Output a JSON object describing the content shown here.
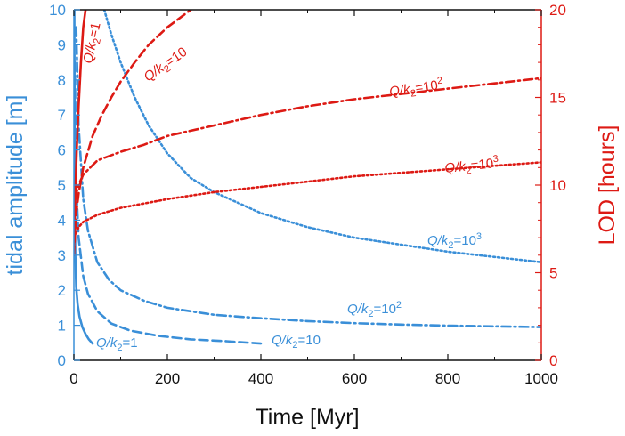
{
  "chart_data": {
    "type": "line",
    "title": "",
    "xlabel": "Time [Myr]",
    "ylabel_left": "tidal amplitude [m]",
    "ylabel_right": "LOD [hours]",
    "xlim": [
      0,
      1000
    ],
    "ylim_left": [
      0,
      10
    ],
    "ylim_right": [
      0,
      20
    ],
    "x_ticks": [
      "0",
      "200",
      "400",
      "600",
      "800",
      "1000"
    ],
    "y_left_ticks": [
      "0",
      "1",
      "2",
      "3",
      "4",
      "5",
      "6",
      "7",
      "8",
      "9",
      "10"
    ],
    "y_right_ticks": [
      "0",
      "5",
      "10",
      "15",
      "20"
    ],
    "colors": {
      "tide": "#3a8fd8",
      "lod": "#dd1a14"
    },
    "series": [
      {
        "name": "Q/k2=1 amplitude",
        "axis": "left",
        "color": "#3a8fd8",
        "dash": "solid",
        "x": [
          1,
          2,
          3,
          5,
          8,
          12,
          18,
          25,
          32,
          40
        ],
        "y": [
          10.0,
          4.1,
          3.0,
          2.1,
          1.6,
          1.25,
          0.95,
          0.75,
          0.6,
          0.48
        ]
      },
      {
        "name": "Q/k2=10 amplitude",
        "axis": "left",
        "color": "#3a8fd8",
        "dash": "dashed",
        "x": [
          2,
          5,
          10,
          20,
          30,
          50,
          80,
          120,
          180,
          250,
          320,
          400
        ],
        "y": [
          8.5,
          5.0,
          3.5,
          2.4,
          1.9,
          1.4,
          1.05,
          0.85,
          0.7,
          0.6,
          0.55,
          0.48
        ]
      },
      {
        "name": "Q/k2=10^2 amplitude",
        "axis": "left",
        "color": "#3a8fd8",
        "dash": "dashdot",
        "x": [
          5,
          10,
          20,
          30,
          50,
          75,
          100,
          150,
          200,
          300,
          400,
          500,
          600,
          700,
          800,
          900,
          1000
        ],
        "y": [
          9.5,
          6.7,
          4.6,
          3.7,
          2.8,
          2.3,
          2.0,
          1.7,
          1.5,
          1.3,
          1.2,
          1.12,
          1.06,
          1.02,
          0.99,
          0.97,
          0.95
        ]
      },
      {
        "name": "Q/k2=10^3 amplitude",
        "axis": "left",
        "color": "#3a8fd8",
        "dash": "dotted",
        "x": [
          65,
          80,
          100,
          130,
          160,
          200,
          250,
          300,
          350,
          400,
          500,
          600,
          700,
          800,
          900,
          1000
        ],
        "y": [
          10.0,
          9.3,
          8.5,
          7.5,
          6.7,
          5.9,
          5.2,
          4.8,
          4.5,
          4.2,
          3.8,
          3.5,
          3.3,
          3.1,
          2.95,
          2.8
        ]
      },
      {
        "name": "Q/k2=1 LOD",
        "axis": "right",
        "color": "#dd1a14",
        "dash": "solid",
        "x": [
          0,
          3,
          6,
          10,
          15,
          20,
          25
        ],
        "y": [
          6.0,
          9.5,
          12.0,
          14.5,
          17.0,
          19.0,
          20.0
        ]
      },
      {
        "name": "Q/k2=10 LOD",
        "axis": "right",
        "color": "#dd1a14",
        "dash": "dashed",
        "x": [
          0,
          5,
          10,
          20,
          40,
          60,
          80,
          100,
          130,
          160,
          200,
          250
        ],
        "y": [
          6.0,
          8.4,
          9.5,
          11.0,
          12.8,
          14.0,
          15.0,
          15.9,
          17.0,
          18.0,
          19.0,
          20.0
        ]
      },
      {
        "name": "Q/k2=10^2 LOD",
        "axis": "right",
        "color": "#dd1a14",
        "dash": "dashdot",
        "x": [
          0,
          5,
          10,
          20,
          50,
          100,
          150,
          200,
          300,
          400,
          500,
          600,
          700,
          800,
          900,
          1000
        ],
        "y": [
          8.2,
          9.5,
          10.0,
          10.6,
          11.4,
          11.9,
          12.3,
          12.8,
          13.4,
          14.0,
          14.5,
          14.9,
          15.2,
          15.5,
          15.8,
          16.1
        ]
      },
      {
        "name": "Q/k2=10^3 LOD",
        "axis": "right",
        "color": "#dd1a14",
        "dash": "dotted",
        "x": [
          0,
          5,
          10,
          20,
          50,
          100,
          200,
          300,
          400,
          500,
          600,
          700,
          800,
          900,
          1000
        ],
        "y": [
          7.0,
          7.3,
          7.6,
          7.9,
          8.3,
          8.7,
          9.2,
          9.6,
          9.9,
          10.2,
          10.5,
          10.7,
          10.9,
          11.1,
          11.3
        ]
      }
    ],
    "annotations": [
      {
        "id": "a1",
        "text_pre": "Q/k",
        "text_sub": "2",
        "text_post": "=1",
        "text_sup": "",
        "color": "#3a8fd8"
      },
      {
        "id": "a2",
        "text_pre": "Q/k",
        "text_sub": "2",
        "text_post": "=10",
        "text_sup": "",
        "color": "#3a8fd8"
      },
      {
        "id": "a3",
        "text_pre": "Q/k",
        "text_sub": "2",
        "text_post": "=10",
        "text_sup": "2",
        "color": "#3a8fd8"
      },
      {
        "id": "a4",
        "text_pre": "Q/k",
        "text_sub": "2",
        "text_post": "=10",
        "text_sup": "3",
        "color": "#3a8fd8"
      },
      {
        "id": "a5",
        "text_pre": "Q/k",
        "text_sub": "2",
        "text_post": "=1",
        "text_sup": "",
        "color": "#dd1a14"
      },
      {
        "id": "a6",
        "text_pre": "Q/k",
        "text_sub": "2",
        "text_post": "=10",
        "text_sup": "",
        "color": "#dd1a14"
      },
      {
        "id": "a7",
        "text_pre": "Q/k",
        "text_sub": "2",
        "text_post": "=10",
        "text_sup": "2",
        "color": "#dd1a14"
      },
      {
        "id": "a8",
        "text_pre": "Q/k",
        "text_sub": "2",
        "text_post": "=10",
        "text_sup": "3",
        "color": "#dd1a14"
      }
    ]
  }
}
